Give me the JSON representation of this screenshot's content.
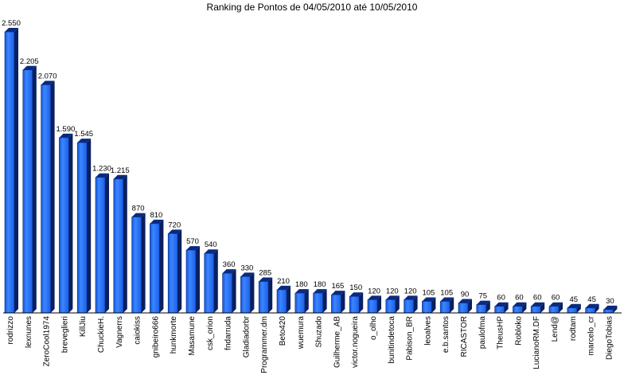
{
  "chart_data": {
    "type": "bar",
    "title": "Ranking de Pontos de 04/05/2010 até 10/05/2010",
    "xlabel": "",
    "ylabel": "",
    "ylim": [
      0,
      2600
    ],
    "grid": false,
    "legend": "none",
    "categories": [
      "rodrizzo",
      "lexnunes",
      "ZeroCool1974",
      "breveglieri",
      "KillJiu",
      "ChuckieH.",
      "Vagnerrs",
      "caiokiss",
      "gnibeiro666",
      "hunkmorte",
      "Masamune",
      "csk_orion",
      "fndarruda",
      "Gladiadorbr",
      "Programmer.dm",
      "Beto420",
      "wuemura",
      "Shuzado",
      "Guilherme_AB",
      "victor.nogueira",
      "o_olho",
      "bunitindetoca",
      "Pabison_BR",
      "leoalves",
      "e.b.santos",
      "RICASTOR",
      "paulofma",
      "TheusHP",
      "Robloko",
      "LucianoRM.DF",
      "Lend@",
      "rodtam",
      "marcelo_cr",
      "DiegoTobias"
    ],
    "values": [
      2550,
      2205,
      2070,
      1590,
      1545,
      1230,
      1215,
      870,
      810,
      720,
      570,
      540,
      360,
      330,
      285,
      210,
      180,
      180,
      165,
      150,
      120,
      120,
      120,
      105,
      105,
      90,
      75,
      60,
      60,
      60,
      60,
      45,
      45,
      30
    ],
    "value_labels": [
      "2.550",
      "2.205",
      "2.070",
      "1.590",
      "1.545",
      "1.230",
      "1.215",
      "870",
      "810",
      "720",
      "570",
      "540",
      "360",
      "330",
      "285",
      "210",
      "180",
      "180",
      "165",
      "150",
      "120",
      "120",
      "120",
      "105",
      "105",
      "90",
      "75",
      "60",
      "60",
      "60",
      "60",
      "45",
      "45",
      "30"
    ],
    "colors": {
      "bar_front": "#1a66f0",
      "bar_front_light": "#3d86ff",
      "bar_top": "#0a2a80",
      "bar_side": "#0a1f5e",
      "axis": "#000000"
    }
  }
}
